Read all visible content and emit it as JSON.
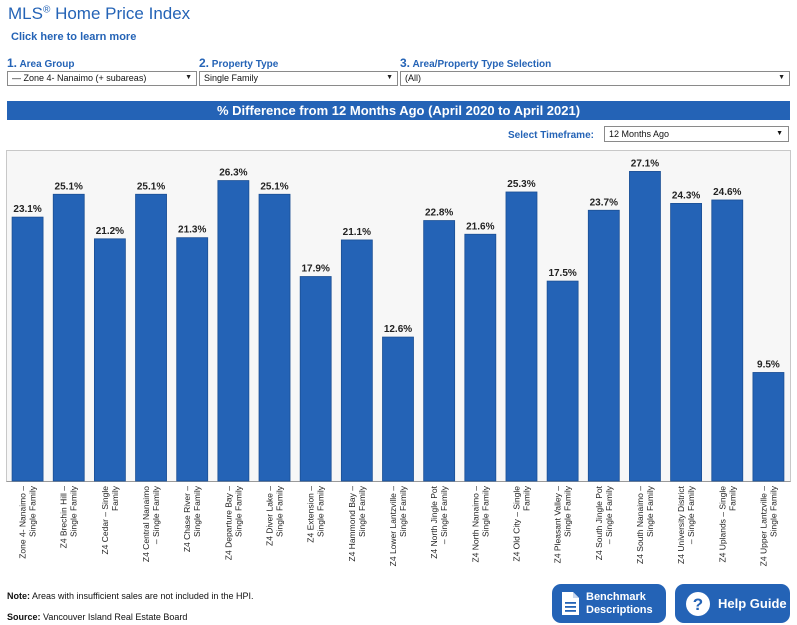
{
  "header": {
    "title": "MLS",
    "title_sup": "®",
    "title_rest": " Home Price Index",
    "learn_link": "Click here to learn more"
  },
  "selectors": {
    "area_group": {
      "num": "1.",
      "label": "Area Group",
      "value": "— Zone 4- Nanaimo (+ subareas)"
    },
    "property_type": {
      "num": "2.",
      "label": "Property Type",
      "value": "Single Family"
    },
    "area_property": {
      "num": "3.",
      "label": "Area/Property Type Selection",
      "value": "(All)"
    }
  },
  "banner": "% Difference from 12 Months Ago (April 2020 to April 2021)",
  "timeframe": {
    "label": "Select Timeframe:",
    "value": "12 Months Ago"
  },
  "chart_data": {
    "type": "bar",
    "title": "% Difference from 12 Months Ago (April 2020 to April 2021)",
    "categories": [
      [
        "Zone 4- Nanaimo –",
        "Single Family"
      ],
      [
        "Z4 Brechin Hill –",
        "Single Family"
      ],
      [
        "Z4 Cedar – Single",
        "Family"
      ],
      [
        "Z4 Central Nanaimo",
        "– Single Family"
      ],
      [
        "Z4 Chase River –",
        "Single Family"
      ],
      [
        "Z4 Departure Bay –",
        "Single Family"
      ],
      [
        "Z4 Diver Lake –",
        "Single Family"
      ],
      [
        "Z4 Extension –",
        "Single Family"
      ],
      [
        "Z4 Hammond Bay –",
        "Single Family"
      ],
      [
        "Z4 Lower Lantzville –",
        "Single Family"
      ],
      [
        "Z4 North Jingle Pot",
        "– Single Family"
      ],
      [
        "Z4 North Nanaimo –",
        "Single Family"
      ],
      [
        "Z4 Old City – Single",
        "Family"
      ],
      [
        "Z4 Pleasant Valley –",
        "Single Family"
      ],
      [
        "Z4 South Jingle Pot",
        "– Single Family"
      ],
      [
        "Z4 South Nanaimo –",
        "Single Family"
      ],
      [
        "Z4 University District",
        "– Single Family"
      ],
      [
        "Z4 Uplands – Single",
        "Family"
      ],
      [
        "Z4 Upper Lantzville –",
        "Single Family"
      ]
    ],
    "values": [
      23.1,
      25.1,
      21.2,
      25.1,
      21.3,
      26.3,
      25.1,
      17.9,
      21.1,
      12.6,
      22.8,
      21.6,
      25.3,
      17.5,
      23.7,
      27.1,
      24.3,
      24.6,
      9.5
    ],
    "value_labels": [
      "23.1%",
      "25.1%",
      "21.2%",
      "25.1%",
      "21.3%",
      "26.3%",
      "25.1%",
      "17.9%",
      "21.1%",
      "12.6%",
      "22.8%",
      "21.6%",
      "25.3%",
      "17.5%",
      "23.7%",
      "27.1%",
      "24.3%",
      "24.6%",
      "9.5%"
    ],
    "ylim": [
      0,
      28.8
    ],
    "bar_color": "#2463b6",
    "grid": false
  },
  "footer": {
    "note_label": "Note:",
    "note_text": " Areas with insufficient sales are not included in the HPI.",
    "source_label": "Source:",
    "source_text": " Vancouver Island Real Estate Board"
  },
  "buttons": {
    "benchmark_line1": "Benchmark",
    "benchmark_line2": "Descriptions",
    "help": "Help Guide"
  },
  "icons": {
    "benchmark": "document-icon",
    "help": "question-circle-icon"
  },
  "colors": {
    "accent": "#2463b6"
  }
}
